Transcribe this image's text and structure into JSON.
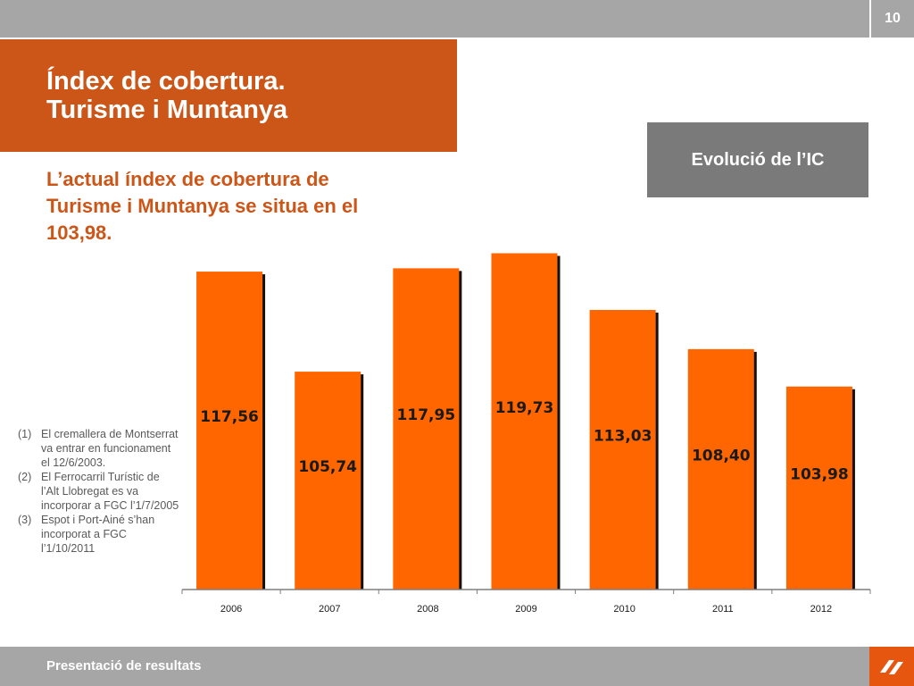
{
  "header": {
    "page_number": "10"
  },
  "title": {
    "line1": "Índex de cobertura.",
    "line2": "Turisme i Muntanya"
  },
  "section_label": "Evolució de l’IC",
  "subtitle": "L’actual índex de cobertura de Turisme i Muntanya se situa en el 103,98.",
  "notes": [
    {
      "num": "(1)",
      "text": "El cremallera de Montserrat va entrar en funcionament el 12/6/2003."
    },
    {
      "num": "(2)",
      "text": "El Ferrocarril Turístic de l’Alt Llobregat es va incorporar a FGC l’1/7/2005"
    },
    {
      "num": "(3)",
      "text": " Espot i Port-Ainé s’han incorporat a FGC l’1/10/2011"
    }
  ],
  "footer": {
    "text": "Presentació de resultats"
  },
  "colors": {
    "bar": "#ff6600",
    "bar_shadow": "#111111",
    "title_bg": "#cc5518",
    "bar_chrome": "#a6a6a6",
    "box": "#7a7a7a"
  },
  "chart_data": {
    "type": "bar",
    "categories": [
      "2006",
      "2007",
      "2008",
      "2009",
      "2010",
      "2011",
      "2012"
    ],
    "values": [
      117.56,
      105.74,
      117.95,
      119.73,
      113.03,
      108.4,
      103.98
    ],
    "value_labels": [
      "117,56",
      "105,74",
      "117,95",
      "119,73",
      "113,03",
      "108,40",
      "103,98"
    ],
    "ylim": [
      80,
      122
    ],
    "grid": false,
    "legend": "none"
  }
}
